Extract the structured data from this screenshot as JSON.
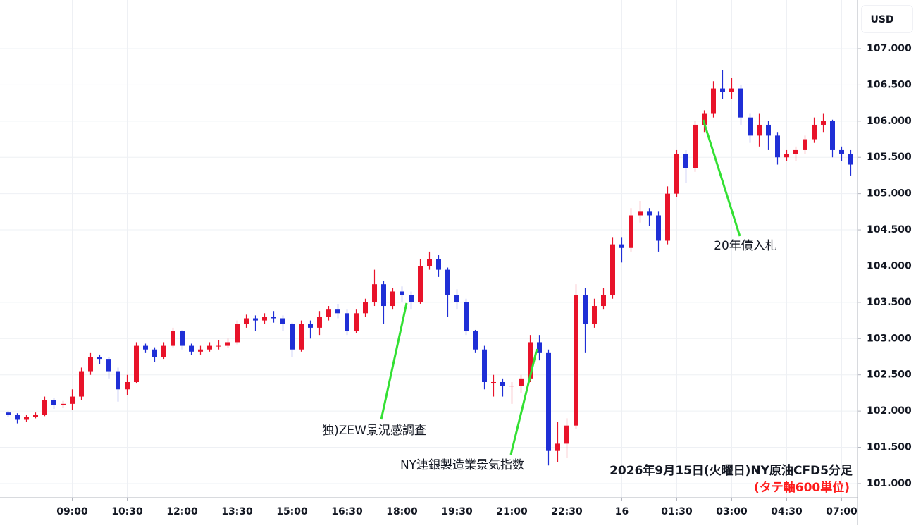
{
  "chart_data": {
    "type": "candlestick",
    "currency": "USD",
    "title": "2026年9月15日(火曜日)NY原油CFD5分足",
    "subtitle": "(タテ軸600単位)",
    "annotations": [
      "独)ZEW景況感調査",
      "NY連銀製造業景気指数",
      "20年債入札"
    ],
    "up_color": "#e8132a",
    "down_color": "#1f2fd6",
    "grid": true,
    "ylim": [
      100.805,
      107.671
    ],
    "yticks": [
      {
        "value": 101,
        "label": "101.000"
      },
      {
        "value": 101.5,
        "label": "101.500"
      },
      {
        "value": 102,
        "label": "102.000"
      },
      {
        "value": 102.5,
        "label": "102.500"
      },
      {
        "value": 103,
        "label": "103.000"
      },
      {
        "value": 103.5,
        "label": "103.500"
      },
      {
        "value": 104,
        "label": "104.000"
      },
      {
        "value": 104.5,
        "label": "104.500"
      },
      {
        "value": 105,
        "label": "105.000"
      },
      {
        "value": 105.5,
        "label": "105.500"
      },
      {
        "value": 106,
        "label": "106.000"
      },
      {
        "value": 106.5,
        "label": "106.500"
      },
      {
        "value": 107,
        "label": "107.000"
      }
    ],
    "categories": [
      null,
      null,
      null,
      null,
      null,
      null,
      null,
      "09:00",
      null,
      null,
      null,
      null,
      null,
      "10:30",
      null,
      null,
      null,
      null,
      null,
      "12:00",
      null,
      null,
      null,
      null,
      null,
      "13:30",
      null,
      null,
      null,
      null,
      null,
      "15:00",
      null,
      null,
      null,
      null,
      null,
      "16:30",
      null,
      null,
      null,
      null,
      null,
      "18:00",
      null,
      null,
      null,
      null,
      null,
      "19:30",
      null,
      null,
      null,
      null,
      null,
      "21:00",
      null,
      null,
      null,
      null,
      null,
      "22:30",
      null,
      null,
      null,
      null,
      null,
      "16",
      null,
      null,
      null,
      null,
      null,
      "01:30",
      null,
      null,
      null,
      null,
      null,
      "03:00",
      null,
      null,
      null,
      null,
      null,
      "04:30",
      null,
      null,
      null,
      null,
      null,
      "07:00",
      null
    ],
    "open": [
      101.98,
      101.95,
      101.88,
      101.92,
      101.95,
      102.15,
      102.08,
      102.1,
      102.2,
      102.55,
      102.75,
      102.72,
      102.55,
      102.3,
      102.4,
      102.9,
      102.85,
      102.75,
      102.9,
      103.1,
      102.9,
      102.82,
      102.85,
      102.9,
      102.9,
      102.95,
      103.2,
      103.28,
      103.25,
      103.3,
      103.28,
      103.2,
      102.85,
      103.2,
      103.15,
      103.3,
      103.4,
      103.35,
      103.1,
      103.35,
      103.5,
      103.75,
      103.45,
      103.65,
      103.6,
      103.5,
      104.0,
      104.1,
      103.95,
      103.6,
      103.5,
      103.1,
      102.85,
      102.4,
      102.4,
      102.35,
      102.35,
      102.45,
      102.95,
      102.8,
      101.45,
      101.55,
      101.8,
      103.6,
      103.2,
      103.45,
      103.6,
      104.3,
      104.25,
      104.7,
      104.75,
      104.7,
      104.35,
      105.0,
      105.55,
      105.35,
      105.95,
      106.1,
      106.45,
      106.4,
      106.45,
      106.05,
      105.8,
      105.95,
      105.8,
      105.5,
      105.55,
      105.6,
      105.75,
      105.95,
      106.0,
      105.6,
      105.55
    ],
    "high": [
      102.0,
      101.97,
      101.95,
      101.98,
      102.2,
      102.18,
      102.14,
      102.3,
      102.6,
      102.8,
      102.78,
      102.75,
      102.6,
      102.5,
      102.95,
      102.93,
      102.88,
      102.95,
      103.15,
      103.12,
      102.93,
      102.9,
      102.95,
      102.98,
      103.0,
      103.25,
      103.33,
      103.32,
      103.35,
      103.38,
      103.32,
      103.22,
      103.25,
      103.25,
      103.38,
      103.45,
      103.48,
      103.4,
      103.4,
      103.55,
      103.95,
      103.8,
      103.7,
      103.72,
      103.65,
      104.1,
      104.2,
      104.15,
      103.98,
      103.68,
      103.55,
      103.12,
      102.9,
      102.5,
      102.45,
      102.4,
      102.5,
      103.05,
      103.05,
      102.85,
      101.85,
      101.9,
      103.75,
      103.7,
      103.55,
      103.7,
      104.4,
      104.4,
      104.8,
      104.9,
      104.8,
      104.75,
      105.1,
      105.6,
      105.6,
      106.0,
      106.15,
      106.55,
      106.7,
      106.6,
      106.5,
      106.1,
      106.1,
      106.0,
      105.85,
      105.6,
      105.65,
      105.8,
      106.05,
      106.1,
      106.02,
      105.65,
      105.6
    ],
    "low": [
      101.92,
      101.83,
      101.85,
      101.9,
      101.93,
      102.03,
      102.04,
      102.02,
      102.15,
      102.5,
      102.65,
      102.45,
      102.13,
      102.22,
      102.38,
      102.8,
      102.68,
      102.72,
      102.88,
      102.85,
      102.77,
      102.78,
      102.82,
      102.85,
      102.87,
      102.92,
      103.15,
      103.1,
      103.2,
      103.22,
      103.1,
      102.75,
      102.82,
      103.0,
      103.05,
      103.25,
      103.28,
      103.05,
      103.08,
      103.3,
      103.45,
      103.2,
      103.4,
      103.5,
      103.4,
      103.48,
      103.95,
      103.85,
      103.3,
      103.4,
      103.05,
      102.8,
      102.3,
      102.2,
      102.2,
      102.1,
      102.25,
      102.4,
      102.7,
      101.25,
      101.3,
      101.35,
      101.75,
      102.8,
      103.15,
      103.4,
      103.55,
      104.05,
      104.2,
      104.6,
      104.55,
      104.2,
      104.3,
      104.95,
      105.15,
      105.3,
      105.85,
      106.05,
      106.3,
      106.3,
      105.95,
      105.7,
      105.65,
      105.6,
      105.4,
      105.45,
      105.45,
      105.55,
      105.7,
      105.85,
      105.5,
      105.45,
      105.25
    ],
    "close": [
      101.95,
      101.88,
      101.92,
      101.95,
      102.15,
      102.08,
      102.1,
      102.2,
      102.55,
      102.75,
      102.72,
      102.55,
      102.3,
      102.4,
      102.9,
      102.85,
      102.75,
      102.9,
      103.1,
      102.9,
      102.82,
      102.85,
      102.9,
      102.9,
      102.95,
      103.2,
      103.28,
      103.25,
      103.3,
      103.28,
      103.2,
      102.85,
      103.2,
      103.15,
      103.3,
      103.4,
      103.35,
      103.1,
      103.35,
      103.5,
      103.75,
      103.45,
      103.65,
      103.6,
      103.5,
      104.0,
      104.1,
      103.95,
      103.6,
      103.5,
      103.1,
      102.85,
      102.4,
      102.4,
      102.35,
      102.35,
      102.45,
      102.95,
      102.8,
      101.45,
      101.55,
      101.8,
      103.6,
      103.2,
      103.45,
      103.6,
      104.3,
      104.25,
      104.7,
      104.75,
      104.7,
      104.35,
      105.0,
      105.55,
      105.35,
      105.95,
      106.1,
      106.45,
      106.4,
      106.45,
      106.05,
      105.8,
      105.95,
      105.8,
      105.5,
      105.55,
      105.6,
      105.75,
      105.95,
      106.0,
      105.6,
      105.55,
      105.4
    ]
  }
}
